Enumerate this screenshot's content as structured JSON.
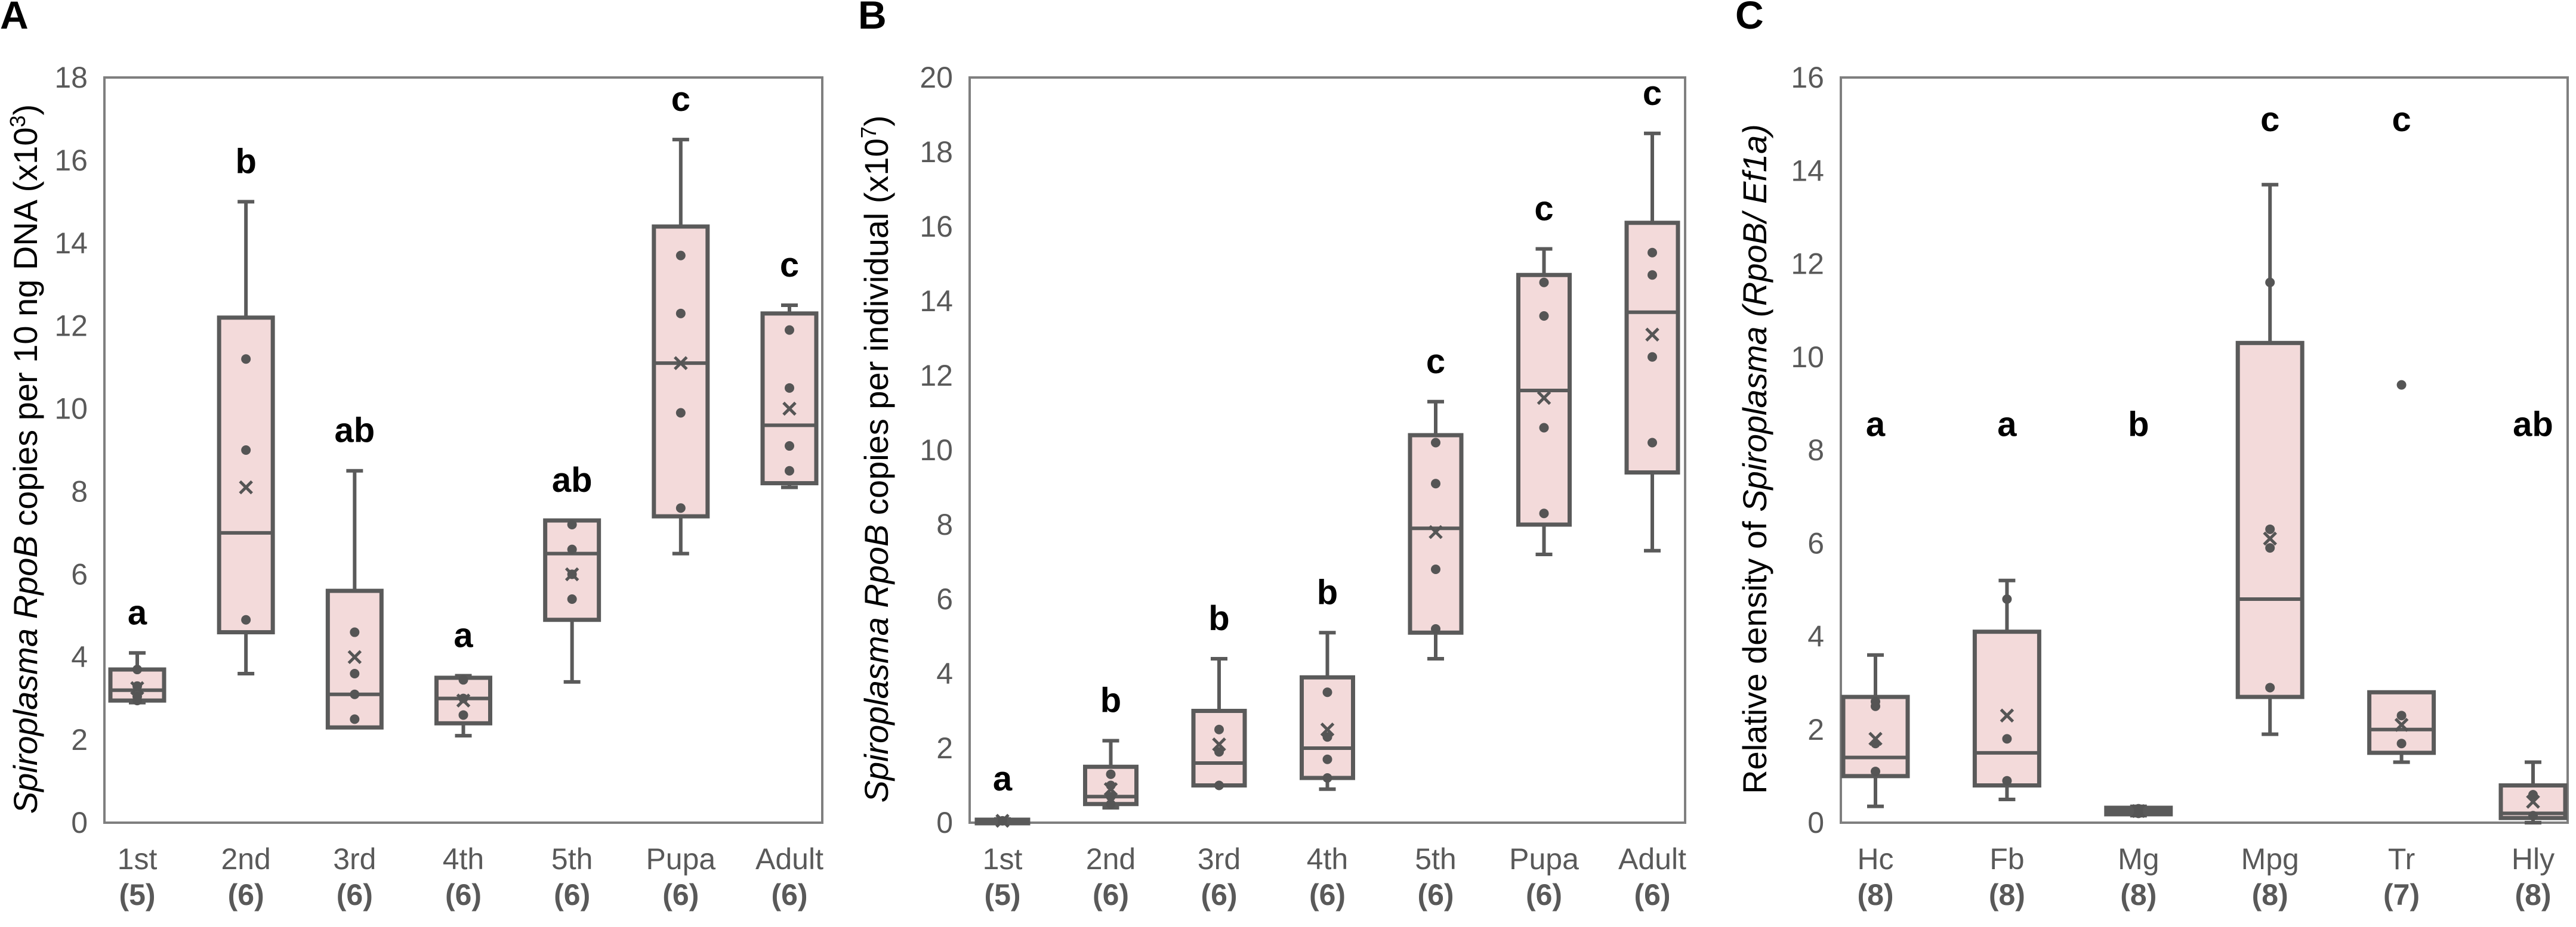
{
  "chart_data": [
    {
      "panel": "A",
      "type": "box",
      "ylabel_parts": [
        {
          "text": "Spiroplasma RpoB",
          "italic": true
        },
        {
          "text": " copies per 10 ng DNA (x10",
          "italic": false
        },
        {
          "text": "3",
          "italic": false,
          "sup": true
        },
        {
          "text": ")",
          "italic": false
        }
      ],
      "ylim": [
        0,
        18
      ],
      "yticks": [
        "0",
        "2",
        "4",
        "6",
        "8",
        "10",
        "12",
        "14",
        "16",
        "18"
      ],
      "categories": [
        "1st",
        "2nd",
        "3rd",
        "4th",
        "5th",
        "Pupa",
        "Adult"
      ],
      "n": [
        "(5)",
        "(6)",
        "(6)",
        "(6)",
        "(6)",
        "(6)",
        "(6)"
      ],
      "letters": [
        "a",
        "b",
        "ab",
        "a",
        "ab",
        "c",
        "c"
      ],
      "boxes": [
        {
          "wlo": 2.9,
          "q1": 2.95,
          "median": 3.2,
          "q3": 3.7,
          "whi": 4.1,
          "mean": 3.25,
          "points": [
            2.95,
            3.05,
            3.3,
            3.7
          ]
        },
        {
          "wlo": 3.6,
          "q1": 4.6,
          "median": 7.0,
          "q3": 12.2,
          "whi": 15.0,
          "mean": 8.1,
          "points": [
            4.9,
            9.0,
            11.2
          ]
        },
        {
          "wlo": 2.3,
          "q1": 2.3,
          "median": 3.1,
          "q3": 5.6,
          "whi": 8.5,
          "mean": 4.0,
          "points": [
            2.5,
            3.1,
            3.6,
            4.6
          ]
        },
        {
          "wlo": 2.1,
          "q1": 2.4,
          "median": 3.0,
          "q3": 3.5,
          "whi": 3.55,
          "mean": 2.95,
          "points": [
            2.6,
            3.0,
            3.45
          ]
        },
        {
          "wlo": 3.4,
          "q1": 4.9,
          "median": 6.5,
          "q3": 7.3,
          "whi": 7.3,
          "mean": 6.0,
          "points": [
            5.4,
            6.0,
            6.6,
            7.2
          ]
        },
        {
          "wlo": 6.5,
          "q1": 7.4,
          "median": 11.1,
          "q3": 14.4,
          "whi": 16.5,
          "mean": 11.1,
          "points": [
            7.6,
            9.9,
            12.3,
            13.7
          ]
        },
        {
          "wlo": 8.1,
          "q1": 8.2,
          "median": 9.6,
          "q3": 12.3,
          "whi": 12.5,
          "mean": 10.0,
          "points": [
            8.5,
            9.1,
            10.5,
            11.9
          ]
        }
      ]
    },
    {
      "panel": "B",
      "type": "box",
      "ylabel_parts": [
        {
          "text": "Spiroplasma RpoB",
          "italic": true
        },
        {
          "text": " copies per individual (x10",
          "italic": false
        },
        {
          "text": "7",
          "italic": false,
          "sup": true
        },
        {
          "text": ")",
          "italic": false
        }
      ],
      "ylim": [
        0,
        20
      ],
      "yticks": [
        "0",
        "2",
        "4",
        "6",
        "8",
        "10",
        "12",
        "14",
        "16",
        "18",
        "20"
      ],
      "categories": [
        "1st",
        "2nd",
        "3rd",
        "4th",
        "5th",
        "Pupa",
        "Adult"
      ],
      "n": [
        "(5)",
        "(6)",
        "(6)",
        "(6)",
        "(6)",
        "(6)",
        "(6)"
      ],
      "letters": [
        "a",
        "b",
        "b",
        "b",
        "c",
        "c",
        "c"
      ],
      "boxes": [
        {
          "wlo": 0.02,
          "q1": 0.03,
          "median": 0.05,
          "q3": 0.08,
          "whi": 0.1,
          "mean": 0.05,
          "points": [
            0.05
          ]
        },
        {
          "wlo": 0.4,
          "q1": 0.5,
          "median": 0.7,
          "q3": 1.5,
          "whi": 2.2,
          "mean": 0.9,
          "points": [
            0.5,
            0.7,
            1.0,
            1.3
          ]
        },
        {
          "wlo": 1.0,
          "q1": 1.0,
          "median": 1.6,
          "q3": 3.0,
          "whi": 4.4,
          "mean": 2.1,
          "points": [
            1.0,
            1.9,
            2.5
          ]
        },
        {
          "wlo": 0.9,
          "q1": 1.2,
          "median": 2.0,
          "q3": 3.9,
          "whi": 5.1,
          "mean": 2.5,
          "points": [
            1.2,
            1.7,
            2.3,
            3.5
          ]
        },
        {
          "wlo": 4.4,
          "q1": 5.1,
          "median": 7.9,
          "q3": 10.4,
          "whi": 11.3,
          "mean": 7.8,
          "points": [
            5.2,
            6.8,
            9.1,
            10.2
          ]
        },
        {
          "wlo": 7.2,
          "q1": 8.0,
          "median": 11.6,
          "q3": 14.7,
          "whi": 15.4,
          "mean": 11.4,
          "points": [
            8.3,
            10.6,
            13.6,
            14.5
          ]
        },
        {
          "wlo": 7.3,
          "q1": 9.4,
          "median": 13.7,
          "q3": 16.1,
          "whi": 18.5,
          "mean": 13.1,
          "points": [
            10.2,
            12.5,
            14.7,
            15.3
          ]
        }
      ]
    },
    {
      "panel": "C",
      "type": "box",
      "ylabel_parts": [
        {
          "text": "Relative density of ",
          "italic": false
        },
        {
          "text": "Spiroplasma",
          "italic": true
        },
        {
          "text": " (RpoB/ Ef1a)",
          "italic": true
        }
      ],
      "ylim": [
        0,
        16
      ],
      "yticks": [
        "0",
        "2",
        "4",
        "6",
        "8",
        "10",
        "12",
        "14",
        "16"
      ],
      "categories": [
        "Hc",
        "Fb",
        "Mg",
        "Mpg",
        "Tr",
        "Hly"
      ],
      "n": [
        "(8)",
        "(8)",
        "(8)",
        "(8)",
        "(7)",
        "(8)"
      ],
      "letters": [
        "a",
        "a",
        "b",
        "c",
        "c",
        "ab"
      ],
      "boxes": [
        {
          "wlo": 0.35,
          "q1": 1.0,
          "median": 1.4,
          "q3": 2.7,
          "whi": 3.6,
          "mean": 1.8,
          "points": [
            1.1,
            1.7,
            2.5,
            2.6
          ]
        },
        {
          "wlo": 0.5,
          "q1": 0.8,
          "median": 1.5,
          "q3": 4.1,
          "whi": 5.2,
          "mean": 2.3,
          "points": [
            0.9,
            1.8,
            4.8
          ]
        },
        {
          "wlo": 0.15,
          "q1": 0.18,
          "median": 0.25,
          "q3": 0.32,
          "whi": 0.35,
          "mean": 0.25,
          "points": [
            0.2,
            0.3
          ]
        },
        {
          "wlo": 1.9,
          "q1": 2.7,
          "median": 4.8,
          "q3": 10.3,
          "whi": 13.7,
          "mean": 6.1,
          "points": [
            2.9,
            5.9,
            6.3,
            11.6
          ]
        },
        {
          "wlo": 1.3,
          "q1": 1.5,
          "median": 2.0,
          "q3": 2.8,
          "whi": 2.8,
          "mean": 2.1,
          "points": [
            1.7,
            2.3,
            9.4
          ]
        },
        {
          "wlo": 0.0,
          "q1": 0.1,
          "median": 0.2,
          "q3": 0.8,
          "whi": 1.3,
          "mean": 0.45,
          "points": [
            0.15,
            0.6
          ]
        }
      ]
    }
  ],
  "colors": {
    "box_fill": "#f3dada",
    "box_stroke": "#5a5a5a",
    "frame": "#7f7f7f",
    "tick_text": "#595959",
    "point": "#555555"
  }
}
